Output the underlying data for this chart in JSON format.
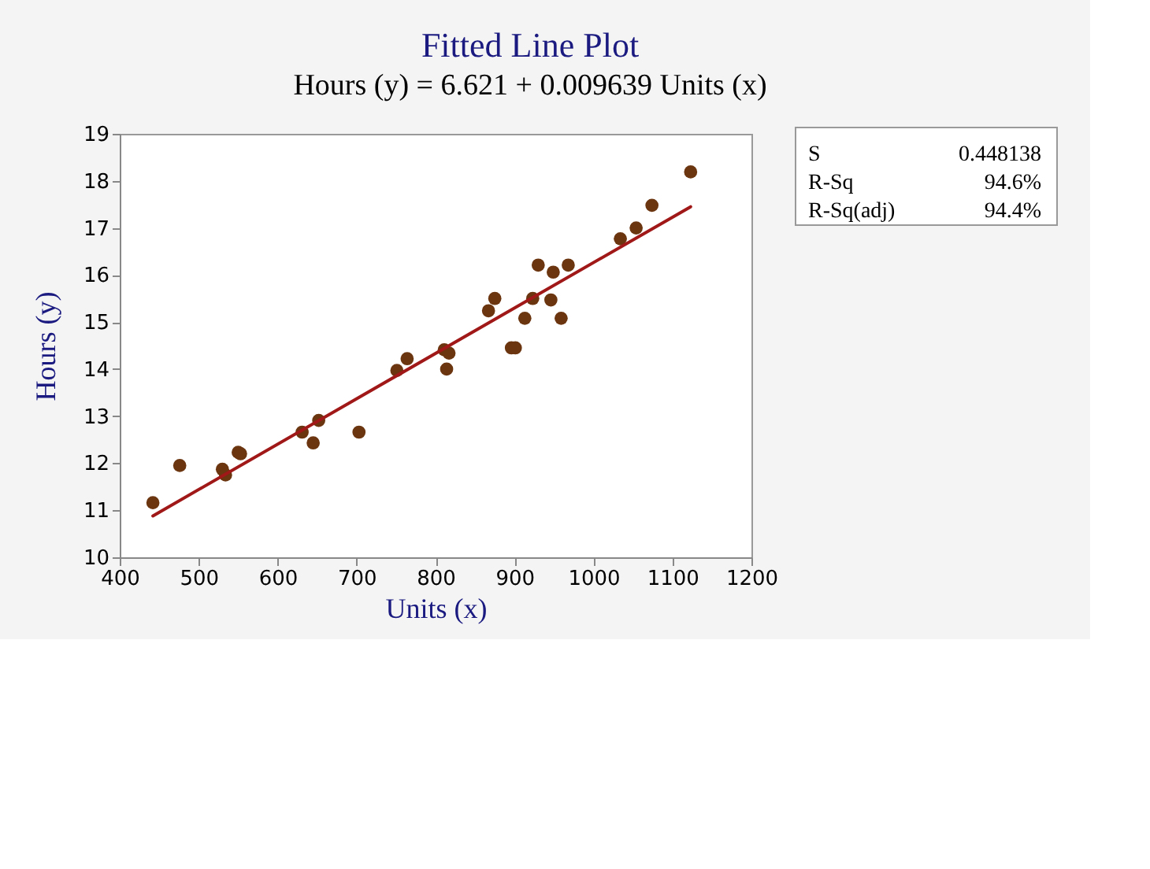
{
  "chart_data": {
    "type": "scatter",
    "title": "Fitted Line Plot",
    "subtitle": "Hours (y) = 6.621 + 0.009639 Units (x)",
    "xlabel": "Units (x)",
    "ylabel": "Hours (y)",
    "xlim": [
      400,
      1200
    ],
    "xticks": [
      400,
      500,
      600,
      700,
      800,
      900,
      1000,
      1100,
      1200
    ],
    "ylim": [
      10,
      19
    ],
    "yticks": [
      10,
      11,
      12,
      13,
      14,
      15,
      16,
      17,
      18,
      19
    ],
    "grid": false,
    "marker": "circle",
    "annotations": [
      "S",
      "0.448138",
      "R-Sq",
      "94.6%",
      "R-Sq(adj)",
      "94.4%"
    ],
    "series": [
      {
        "color": "#6b3510",
        "x": [
          442,
          476,
          530,
          534,
          550,
          553,
          631,
          645,
          652,
          703,
          751,
          764,
          811,
          817,
          814,
          867,
          875,
          896,
          901,
          913,
          923,
          930,
          946,
          949,
          959,
          968,
          1034,
          1054,
          1074,
          1123
        ],
        "values": [
          11.16,
          11.95,
          11.87,
          11.75,
          12.23,
          12.2,
          12.66,
          12.43,
          12.91,
          12.66,
          13.97,
          14.22,
          14.41,
          14.34,
          14.0,
          15.24,
          15.5,
          14.45,
          14.45,
          15.08,
          15.5,
          16.21,
          15.47,
          16.06,
          15.08,
          16.21,
          16.77,
          17.0,
          17.48,
          18.19
        ]
      },
      {
        "type": "line",
        "color": "#a01818",
        "line_style": "solid",
        "marker": "none",
        "x": [
          442,
          1123
        ],
        "values": [
          10.88,
          17.45
        ]
      }
    ]
  }
}
